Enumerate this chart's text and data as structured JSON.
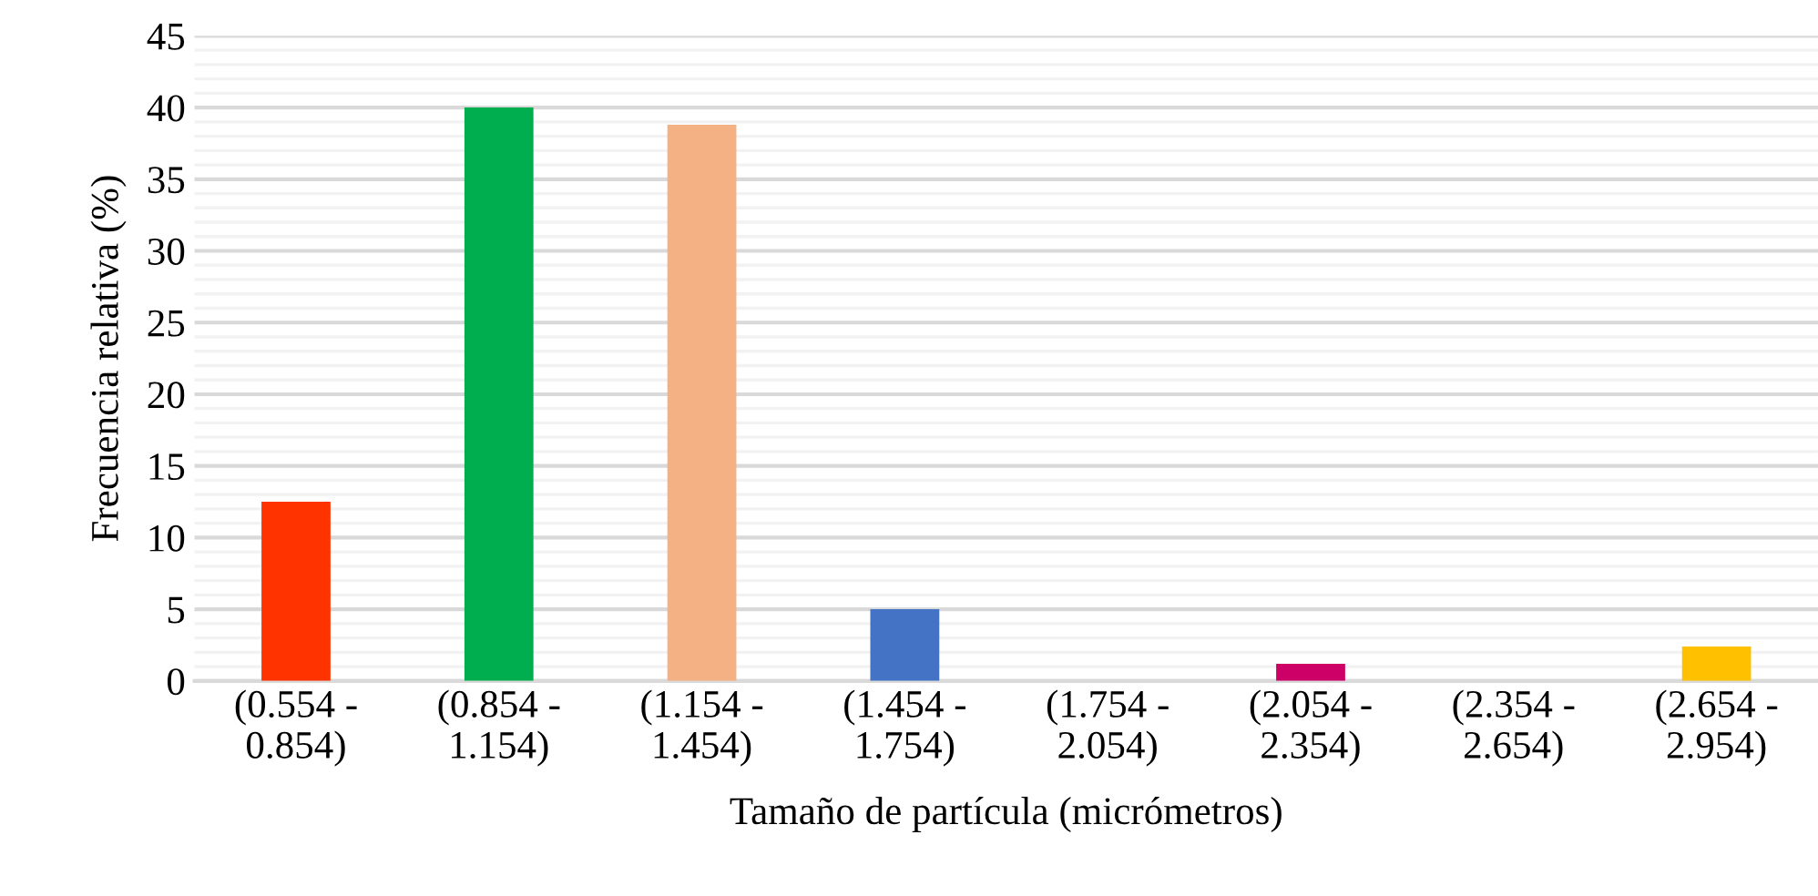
{
  "chart_data": {
    "type": "bar",
    "xlabel": "Tamaño de partícula (micrómetros)",
    "ylabel": "Frecuencia relativa (%)",
    "categories": [
      "(0.554 -\n0.854)",
      "(0.854 -\n1.154)",
      "(1.154 -\n1.454)",
      "(1.454 -\n1.754)",
      "(1.754 -\n2.054)",
      "(2.054 -\n2.354)",
      "(2.354 -\n2.654)",
      "(2.654 -\n2.954)"
    ],
    "values": [
      12.5,
      40.0,
      38.8,
      5.0,
      0,
      1.2,
      0,
      2.4
    ],
    "colors": [
      "#ff3300",
      "#00ad4f",
      "#f4b183",
      "#4472c4",
      "#a5a5a5",
      "#cc0066",
      "#7f7f7f",
      "#ffc000"
    ],
    "ylim": [
      0,
      45
    ],
    "yticks": [
      0,
      {
        "value": 1,
        "label": null
      },
      {
        "value": 2,
        "label": null
      },
      {
        "value": 3,
        "label": null
      },
      {
        "value": 4,
        "label": null
      },
      5,
      {
        "value": 6,
        "label": null
      },
      {
        "value": 7,
        "label": null
      },
      {
        "value": 8,
        "label": null
      },
      {
        "value": 9,
        "label": null
      },
      10,
      {
        "value": 11,
        "label": null
      },
      {
        "value": 12,
        "label": null
      },
      {
        "value": 13,
        "label": null
      },
      {
        "value": 14,
        "label": null
      },
      15,
      {
        "value": 16,
        "label": null
      },
      {
        "value": 17,
        "label": null
      },
      {
        "value": 18,
        "label": null
      },
      {
        "value": 19,
        "label": null
      },
      20,
      {
        "value": 21,
        "label": null
      },
      {
        "value": 22,
        "label": null
      },
      {
        "value": 23,
        "label": null
      },
      {
        "value": 24,
        "label": null
      },
      25,
      {
        "value": 26,
        "label": null
      },
      {
        "value": 27,
        "label": null
      },
      {
        "value": 28,
        "label": null
      },
      {
        "value": 29,
        "label": null
      },
      30,
      {
        "value": 31,
        "label": null
      },
      {
        "value": 32,
        "label": null
      },
      {
        "value": 33,
        "label": null
      },
      {
        "value": 34,
        "label": null
      },
      35,
      {
        "value": 36,
        "label": null
      },
      {
        "value": 37,
        "label": null
      },
      {
        "value": 38,
        "label": null
      },
      {
        "value": 39,
        "label": null
      },
      40,
      {
        "value": 41,
        "label": null
      },
      {
        "value": 42,
        "label": null
      },
      {
        "value": 43,
        "label": null
      },
      {
        "value": 44,
        "label": null
      },
      45
    ],
    "grid": "y"
  }
}
